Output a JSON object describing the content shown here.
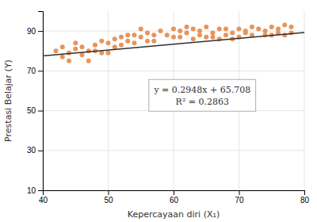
{
  "chart_data": {
    "type": "scatter",
    "x_label": "Kepercayaan diri (X₁)",
    "y_label": "Prestasi Belajar (Y)",
    "xlim": [
      40,
      80
    ],
    "ylim": [
      10,
      100
    ],
    "xticks": [
      40,
      50,
      60,
      70,
      80
    ],
    "yticks": [
      10,
      30,
      50,
      70,
      90
    ],
    "grid": true,
    "annotations": [
      "y = 0.2948x + 65.708",
      "R² = 0.2863"
    ],
    "series": [
      {
        "type": "scatter",
        "color": "#E8945A",
        "x": [
          42,
          43,
          43,
          44,
          44,
          45,
          45,
          46,
          46,
          47,
          47,
          48,
          48,
          49,
          49,
          50,
          50,
          51,
          51,
          52,
          52,
          53,
          53,
          54,
          54,
          55,
          55,
          56,
          56,
          57,
          57,
          58,
          59,
          60,
          60,
          61,
          61,
          62,
          62,
          63,
          63,
          64,
          64,
          65,
          65,
          66,
          66,
          67,
          67,
          68,
          68,
          69,
          69,
          70,
          70,
          71,
          71,
          72,
          72,
          73,
          74,
          74,
          75,
          75,
          76,
          76,
          77,
          77,
          78,
          78
        ],
        "values": [
          80,
          77,
          82,
          79,
          75,
          81,
          84,
          82,
          78,
          80,
          75,
          83,
          80,
          85,
          79,
          84,
          79,
          86,
          82,
          87,
          83,
          85,
          88,
          88,
          84,
          87,
          91,
          89,
          85,
          88,
          85,
          90,
          88,
          91,
          87,
          90,
          87,
          89,
          92,
          91,
          86,
          90,
          88,
          92,
          87,
          89,
          87,
          91,
          86,
          88,
          91,
          89,
          86,
          91,
          87,
          90,
          89,
          92,
          88,
          91,
          88,
          90,
          92,
          88,
          91,
          89,
          93,
          88,
          92,
          89
        ]
      },
      {
        "type": "line",
        "color": "#2F2F2F",
        "x": [
          40,
          80
        ],
        "values": [
          77.5,
          89.292
        ]
      }
    ]
  }
}
